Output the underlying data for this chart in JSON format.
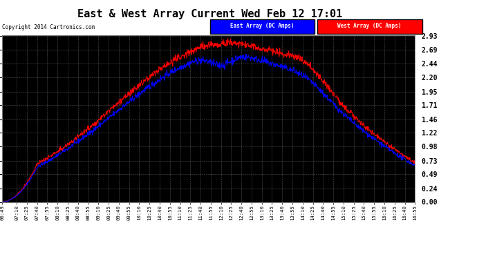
{
  "title": "East & West Array Current Wed Feb 12 17:01",
  "copyright": "Copyright 2014 Cartronics.com",
  "legend_east": "East Array (DC Amps)",
  "legend_west": "West Array (DC Amps)",
  "east_color": "#0000FF",
  "west_color": "#FF0000",
  "background_color": "#000000",
  "yticks": [
    0.0,
    0.24,
    0.49,
    0.73,
    0.98,
    1.22,
    1.46,
    1.71,
    1.95,
    2.2,
    2.44,
    2.69,
    2.93
  ],
  "ymax": 2.93,
  "ymin": 0.0,
  "xtick_labels": [
    "06:49",
    "07:10",
    "07:25",
    "07:40",
    "07:55",
    "08:10",
    "08:25",
    "08:40",
    "08:55",
    "09:10",
    "09:25",
    "09:40",
    "09:55",
    "10:10",
    "10:25",
    "10:40",
    "10:55",
    "11:10",
    "11:25",
    "11:40",
    "11:55",
    "12:10",
    "12:25",
    "12:40",
    "12:55",
    "13:10",
    "13:25",
    "13:40",
    "13:55",
    "14:10",
    "14:25",
    "14:40",
    "14:55",
    "15:10",
    "15:25",
    "15:40",
    "15:55",
    "16:10",
    "16:25",
    "16:40",
    "16:55"
  ]
}
